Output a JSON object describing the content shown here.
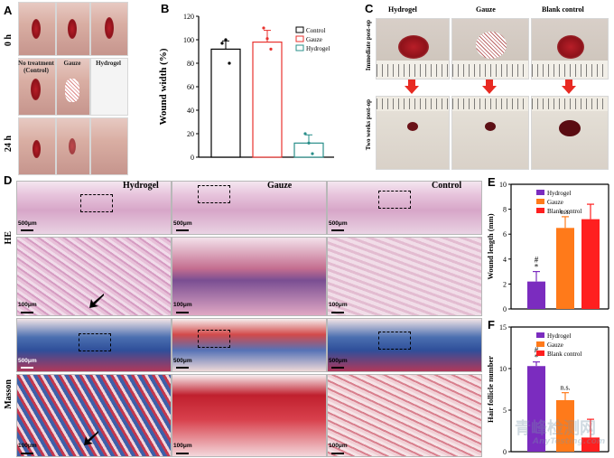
{
  "panels": {
    "a": "A",
    "b": "B",
    "c": "C",
    "d": "D",
    "e": "E",
    "f": "F"
  },
  "panel_a": {
    "row_labels": [
      "0 h",
      "24 h"
    ],
    "captions": [
      "No treatment (Control)",
      "Gauze",
      "Hydrogel"
    ]
  },
  "panel_c": {
    "columns": [
      "Hydrogel",
      "Gauze",
      "Blank control"
    ],
    "rows": [
      "Immediate post-op",
      "Two weeks post-op"
    ]
  },
  "panel_d": {
    "columns": [
      "Hydrogel",
      "Gauze",
      "Control"
    ],
    "row_labels": [
      "HE",
      "Masson"
    ],
    "scale_large": "500μm",
    "scale_small": "100μm"
  },
  "watermark": {
    "cn": "青峰检测网",
    "en": "AnyTesting.com"
  },
  "chart_data": [
    {
      "type": "bar",
      "panel": "B",
      "categories": [
        "Control",
        "Gauze",
        "Hydrogel"
      ],
      "values": [
        92,
        98,
        12
      ],
      "errors": [
        7,
        10,
        7
      ],
      "points": [
        [
          97,
          100,
          80
        ],
        [
          110,
          101,
          92
        ],
        [
          20,
          12,
          3
        ]
      ],
      "colors": [
        "#000000",
        "#e8322e",
        "#2a8f8a"
      ],
      "ylabel": "Wound width (%)",
      "ylim": [
        0,
        120
      ],
      "yticks": [
        "0",
        "20",
        "40",
        "60",
        "80",
        "100",
        "120"
      ],
      "legend": [
        "Control",
        "Gauze",
        "Hydrogel"
      ]
    },
    {
      "type": "bar",
      "panel": "E",
      "categories": [
        "Hydrogel",
        "Gauze",
        "Blank control"
      ],
      "values": [
        2.2,
        6.5,
        7.2
      ],
      "errors": [
        0.8,
        0.9,
        1.2
      ],
      "colors": [
        "#7b2cbf",
        "#ff7a1a",
        "#ff1f1f"
      ],
      "ylabel": "Wound length (mm)",
      "ylim": [
        0,
        10
      ],
      "yticks": [
        "0",
        "2",
        "4",
        "6",
        "8",
        "10"
      ],
      "annotations": [
        "#",
        "*",
        "n.s."
      ],
      "legend": [
        "Hydrogel",
        "Gauze",
        "Blank control"
      ]
    },
    {
      "type": "bar",
      "panel": "F",
      "categories": [
        "Hydrogel",
        "Gauze",
        "Blank control"
      ],
      "values": [
        10.3,
        6.2,
        1.7
      ],
      "errors": [
        0.5,
        0.9,
        2.2
      ],
      "colors": [
        "#7b2cbf",
        "#ff7a1a",
        "#ff1f1f"
      ],
      "ylabel": "Hair follicle number",
      "ylim": [
        0,
        15
      ],
      "yticks": [
        "0",
        "5",
        "10",
        "15"
      ],
      "annotations": [
        "#",
        "*",
        "n.s."
      ],
      "legend": [
        "Hydrogel",
        "Gauze",
        "Blank control"
      ]
    }
  ]
}
